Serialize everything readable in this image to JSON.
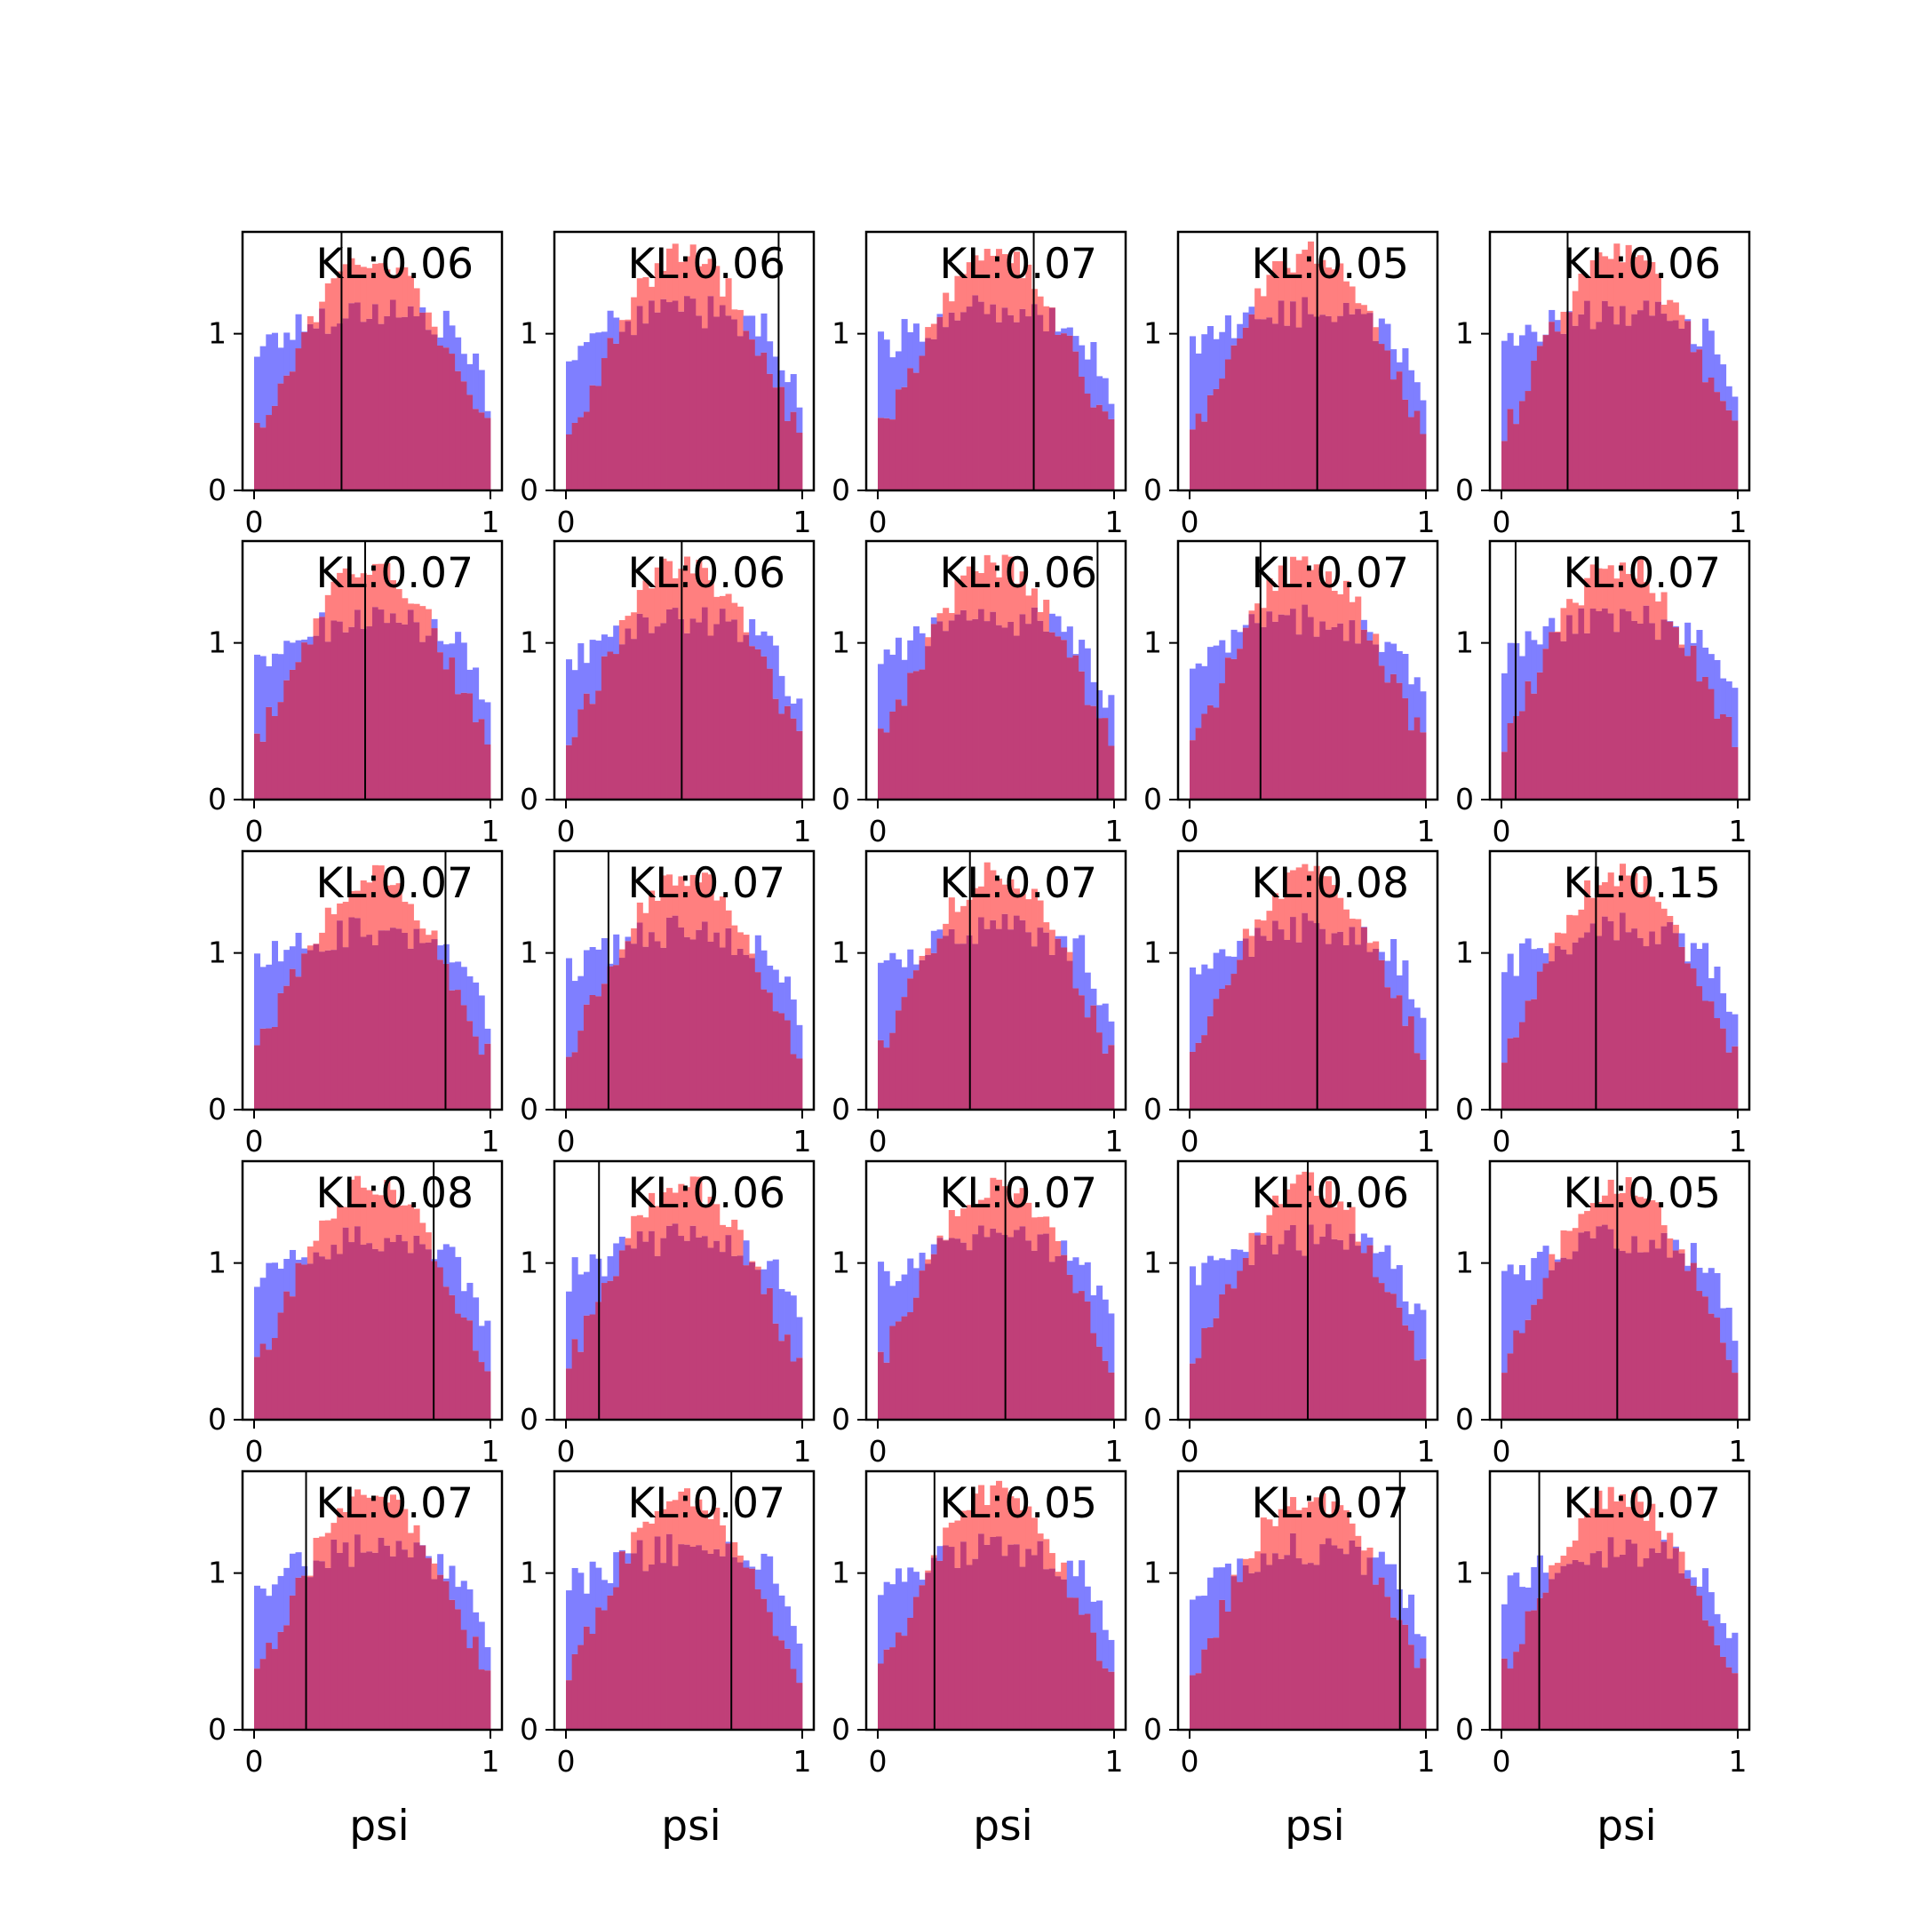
{
  "colors": {
    "blue": "#7f7fff",
    "red": "#ff7f7f",
    "overlap": "#c03f78",
    "frame": "#000000"
  },
  "chart_data": {
    "type": "bar",
    "layout": "5x5 grid of overlaid histograms",
    "xlabel": "psi",
    "xlim": [
      0,
      1
    ],
    "ylim": [
      0,
      1.65
    ],
    "xticks": [
      "0",
      "1"
    ],
    "yticks": [
      "0",
      "1"
    ],
    "bins": 40,
    "series": [
      {
        "name": "",
        "color": "#7f7fff"
      },
      {
        "name": "",
        "color": "#ff7f7f"
      }
    ],
    "panels": [
      {
        "kl": "KL:0.06",
        "marker": 0.37
      },
      {
        "kl": "KL:0.06",
        "marker": 0.9
      },
      {
        "kl": "KL:0.07",
        "marker": 0.66
      },
      {
        "kl": "KL:0.05",
        "marker": 0.54
      },
      {
        "kl": "KL:0.06",
        "marker": 0.28
      },
      {
        "kl": "KL:0.07",
        "marker": 0.47
      },
      {
        "kl": "KL:0.06",
        "marker": 0.49
      },
      {
        "kl": "KL:0.06",
        "marker": 0.93
      },
      {
        "kl": "KL:0.07",
        "marker": 0.3
      },
      {
        "kl": "KL:0.07",
        "marker": 0.06
      },
      {
        "kl": "KL:0.07",
        "marker": 0.81
      },
      {
        "kl": "KL:0.07",
        "marker": 0.18
      },
      {
        "kl": "KL:0.07",
        "marker": 0.39
      },
      {
        "kl": "KL:0.08",
        "marker": 0.54
      },
      {
        "kl": "KL:0.15",
        "marker": 0.4
      },
      {
        "kl": "KL:0.08",
        "marker": 0.76
      },
      {
        "kl": "KL:0.06",
        "marker": 0.14
      },
      {
        "kl": "KL:0.07",
        "marker": 0.54
      },
      {
        "kl": "KL:0.06",
        "marker": 0.5
      },
      {
        "kl": "KL:0.05",
        "marker": 0.49
      },
      {
        "kl": "KL:0.07",
        "marker": 0.22
      },
      {
        "kl": "KL:0.07",
        "marker": 0.7
      },
      {
        "kl": "KL:0.05",
        "marker": 0.24
      },
      {
        "kl": "KL:0.07",
        "marker": 0.89
      },
      {
        "kl": "KL:0.07",
        "marker": 0.16
      }
    ]
  }
}
